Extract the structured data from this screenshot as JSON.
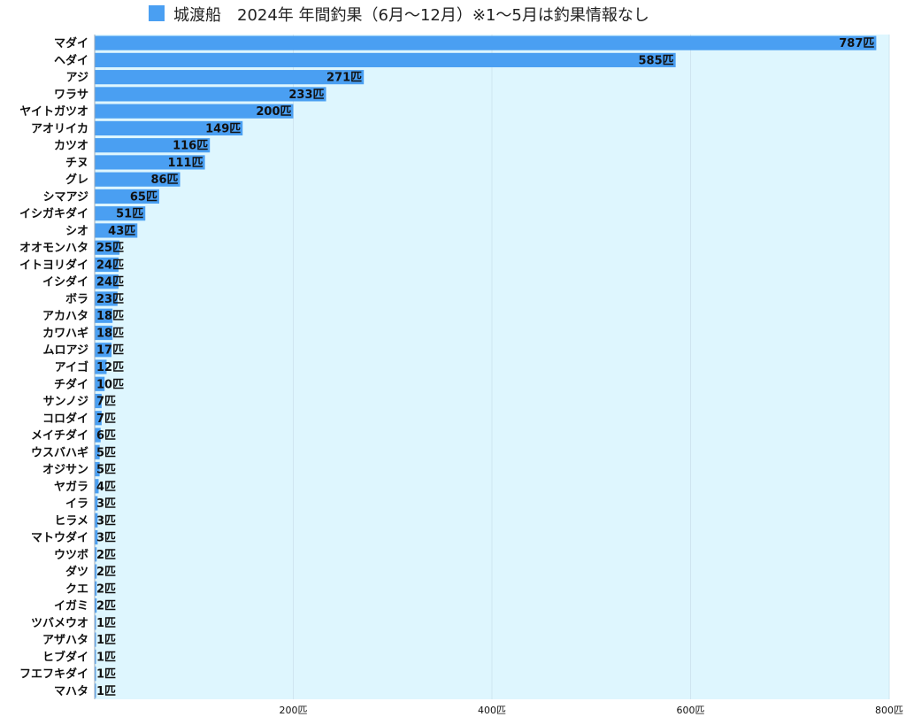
{
  "legend": {
    "label": "城渡船　2024年 年間釣果（6月～12月）※1～5月は釣果情報なし",
    "color": "#4a9ff2"
  },
  "chart_data": {
    "type": "bar",
    "orientation": "horizontal",
    "title": "",
    "xlabel": "",
    "ylabel": "",
    "unit": "匹",
    "xlim": [
      0,
      800
    ],
    "xticks": [
      200,
      400,
      600,
      800
    ],
    "grid": "vertical",
    "legend_position": "top",
    "colors": {
      "bar": "#4a9ff2",
      "plot_bg": "#def6fe",
      "grid": "#cfe5f0"
    },
    "categories": [
      "マダイ",
      "ヘダイ",
      "アジ",
      "ワラサ",
      "ヤイトガツオ",
      "アオリイカ",
      "カツオ",
      "チヌ",
      "グレ",
      "シマアジ",
      "イシガキダイ",
      "シオ",
      "オオモンハタ",
      "イトヨリダイ",
      "イシダイ",
      "ボラ",
      "アカハタ",
      "カワハギ",
      "ムロアジ",
      "アイゴ",
      "チダイ",
      "サンノジ",
      "コロダイ",
      "メイチダイ",
      "ウスバハギ",
      "オジサン",
      "ヤガラ",
      "イラ",
      "ヒラメ",
      "マトウダイ",
      "ウツボ",
      "ダツ",
      "クエ",
      "イガミ",
      "ツバメウオ",
      "アザハタ",
      "ヒブダイ",
      "フエフキダイ",
      "マハタ"
    ],
    "series": [
      {
        "values": [
          787,
          585,
          271,
          233,
          200,
          149,
          116,
          111,
          86,
          65,
          51,
          43,
          25,
          24,
          24,
          23,
          18,
          18,
          17,
          12,
          10,
          7,
          7,
          6,
          5,
          5,
          4,
          3,
          3,
          3,
          2,
          2,
          2,
          2,
          1,
          1,
          1,
          1,
          1
        ]
      }
    ]
  }
}
